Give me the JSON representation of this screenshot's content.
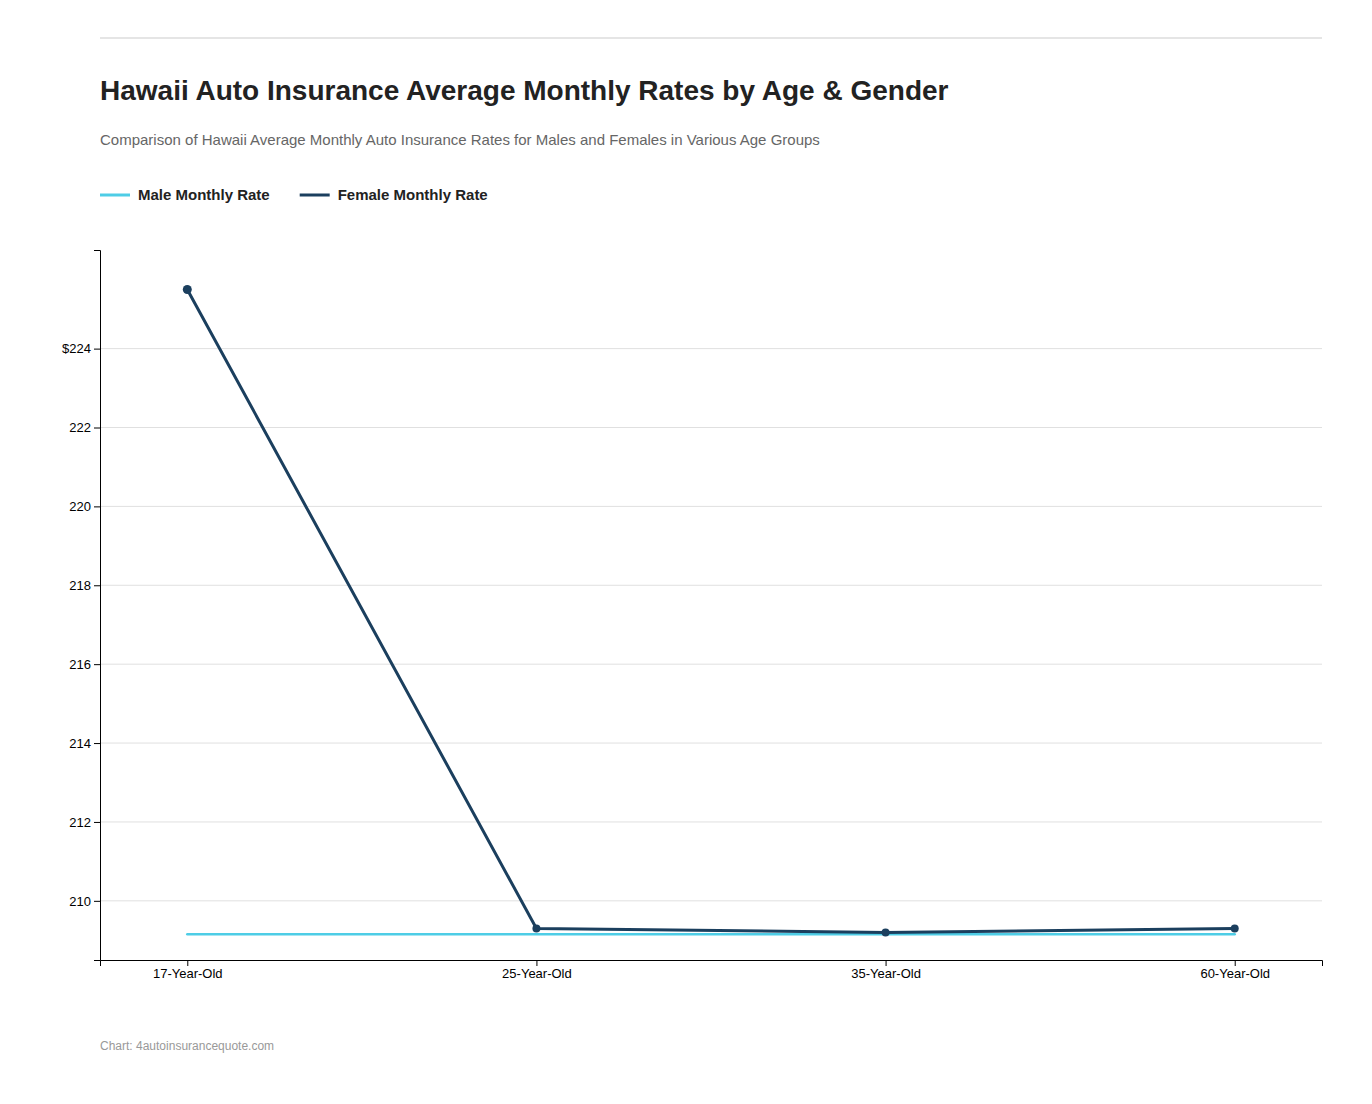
{
  "chart_data": {
    "type": "line",
    "title": "Hawaii Auto Insurance Average Monthly Rates by Age & Gender",
    "subtitle": "Comparison of Hawaii Average Monthly Auto Insurance Rates for Males and Females in Various Age Groups",
    "source": "Chart: 4autoinsurancequote.com",
    "categories": [
      "17-Year-Old",
      "25-Year-Old",
      "35-Year-Old",
      "60-Year-Old"
    ],
    "series": [
      {
        "name": "Male Monthly Rate",
        "color": "#4ecde6",
        "values": [
          209.15,
          209.15,
          209.15,
          209.15
        ]
      },
      {
        "name": "Female Monthly Rate",
        "color": "#1b3f5e",
        "marker": "circle",
        "values": [
          225.5,
          209.3,
          209.2,
          209.3
        ]
      }
    ],
    "ylim": [
      208.5,
      226.5
    ],
    "yticks": [
      210,
      212,
      214,
      216,
      218,
      220,
      222,
      {
        "value": 224,
        "label": "$224"
      }
    ],
    "grid": true,
    "legend": "top-left"
  }
}
